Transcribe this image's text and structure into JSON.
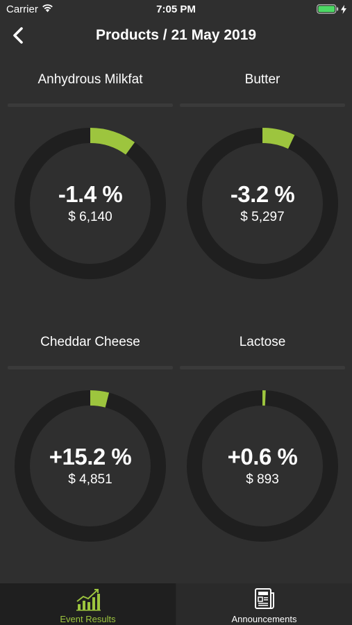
{
  "status": {
    "carrier": "Carrier",
    "time": "7:05 PM",
    "battery_color": "#4cd964"
  },
  "nav": {
    "title": "Products / 21 May 2019",
    "back_icon": "chevron-left-icon"
  },
  "colors": {
    "accent": "#9dc53e",
    "ring": "#1f1f1f",
    "background": "#2f2f2f",
    "divider": "#3a3a3a"
  },
  "products": [
    {
      "name": "Anhydrous Milkfat",
      "change": "-1.4 %",
      "price": "$ 6,140",
      "arc_fraction": 0.1
    },
    {
      "name": "Butter",
      "change": "-3.2 %",
      "price": "$ 5,297",
      "arc_fraction": 0.07
    },
    {
      "name": "Cheddar Cheese",
      "change": "+15.2 %",
      "price": "$ 4,851",
      "arc_fraction": 0.04
    },
    {
      "name": "Lactose",
      "change": "+0.6 %",
      "price": "$ 893",
      "arc_fraction": 0.007
    }
  ],
  "tabs": [
    {
      "label": "Event Results",
      "icon": "bar-chart-icon",
      "active": true,
      "color": "#9dc53e"
    },
    {
      "label": "Announcements",
      "icon": "newspaper-icon",
      "active": false,
      "color": "#ffffff"
    }
  ]
}
